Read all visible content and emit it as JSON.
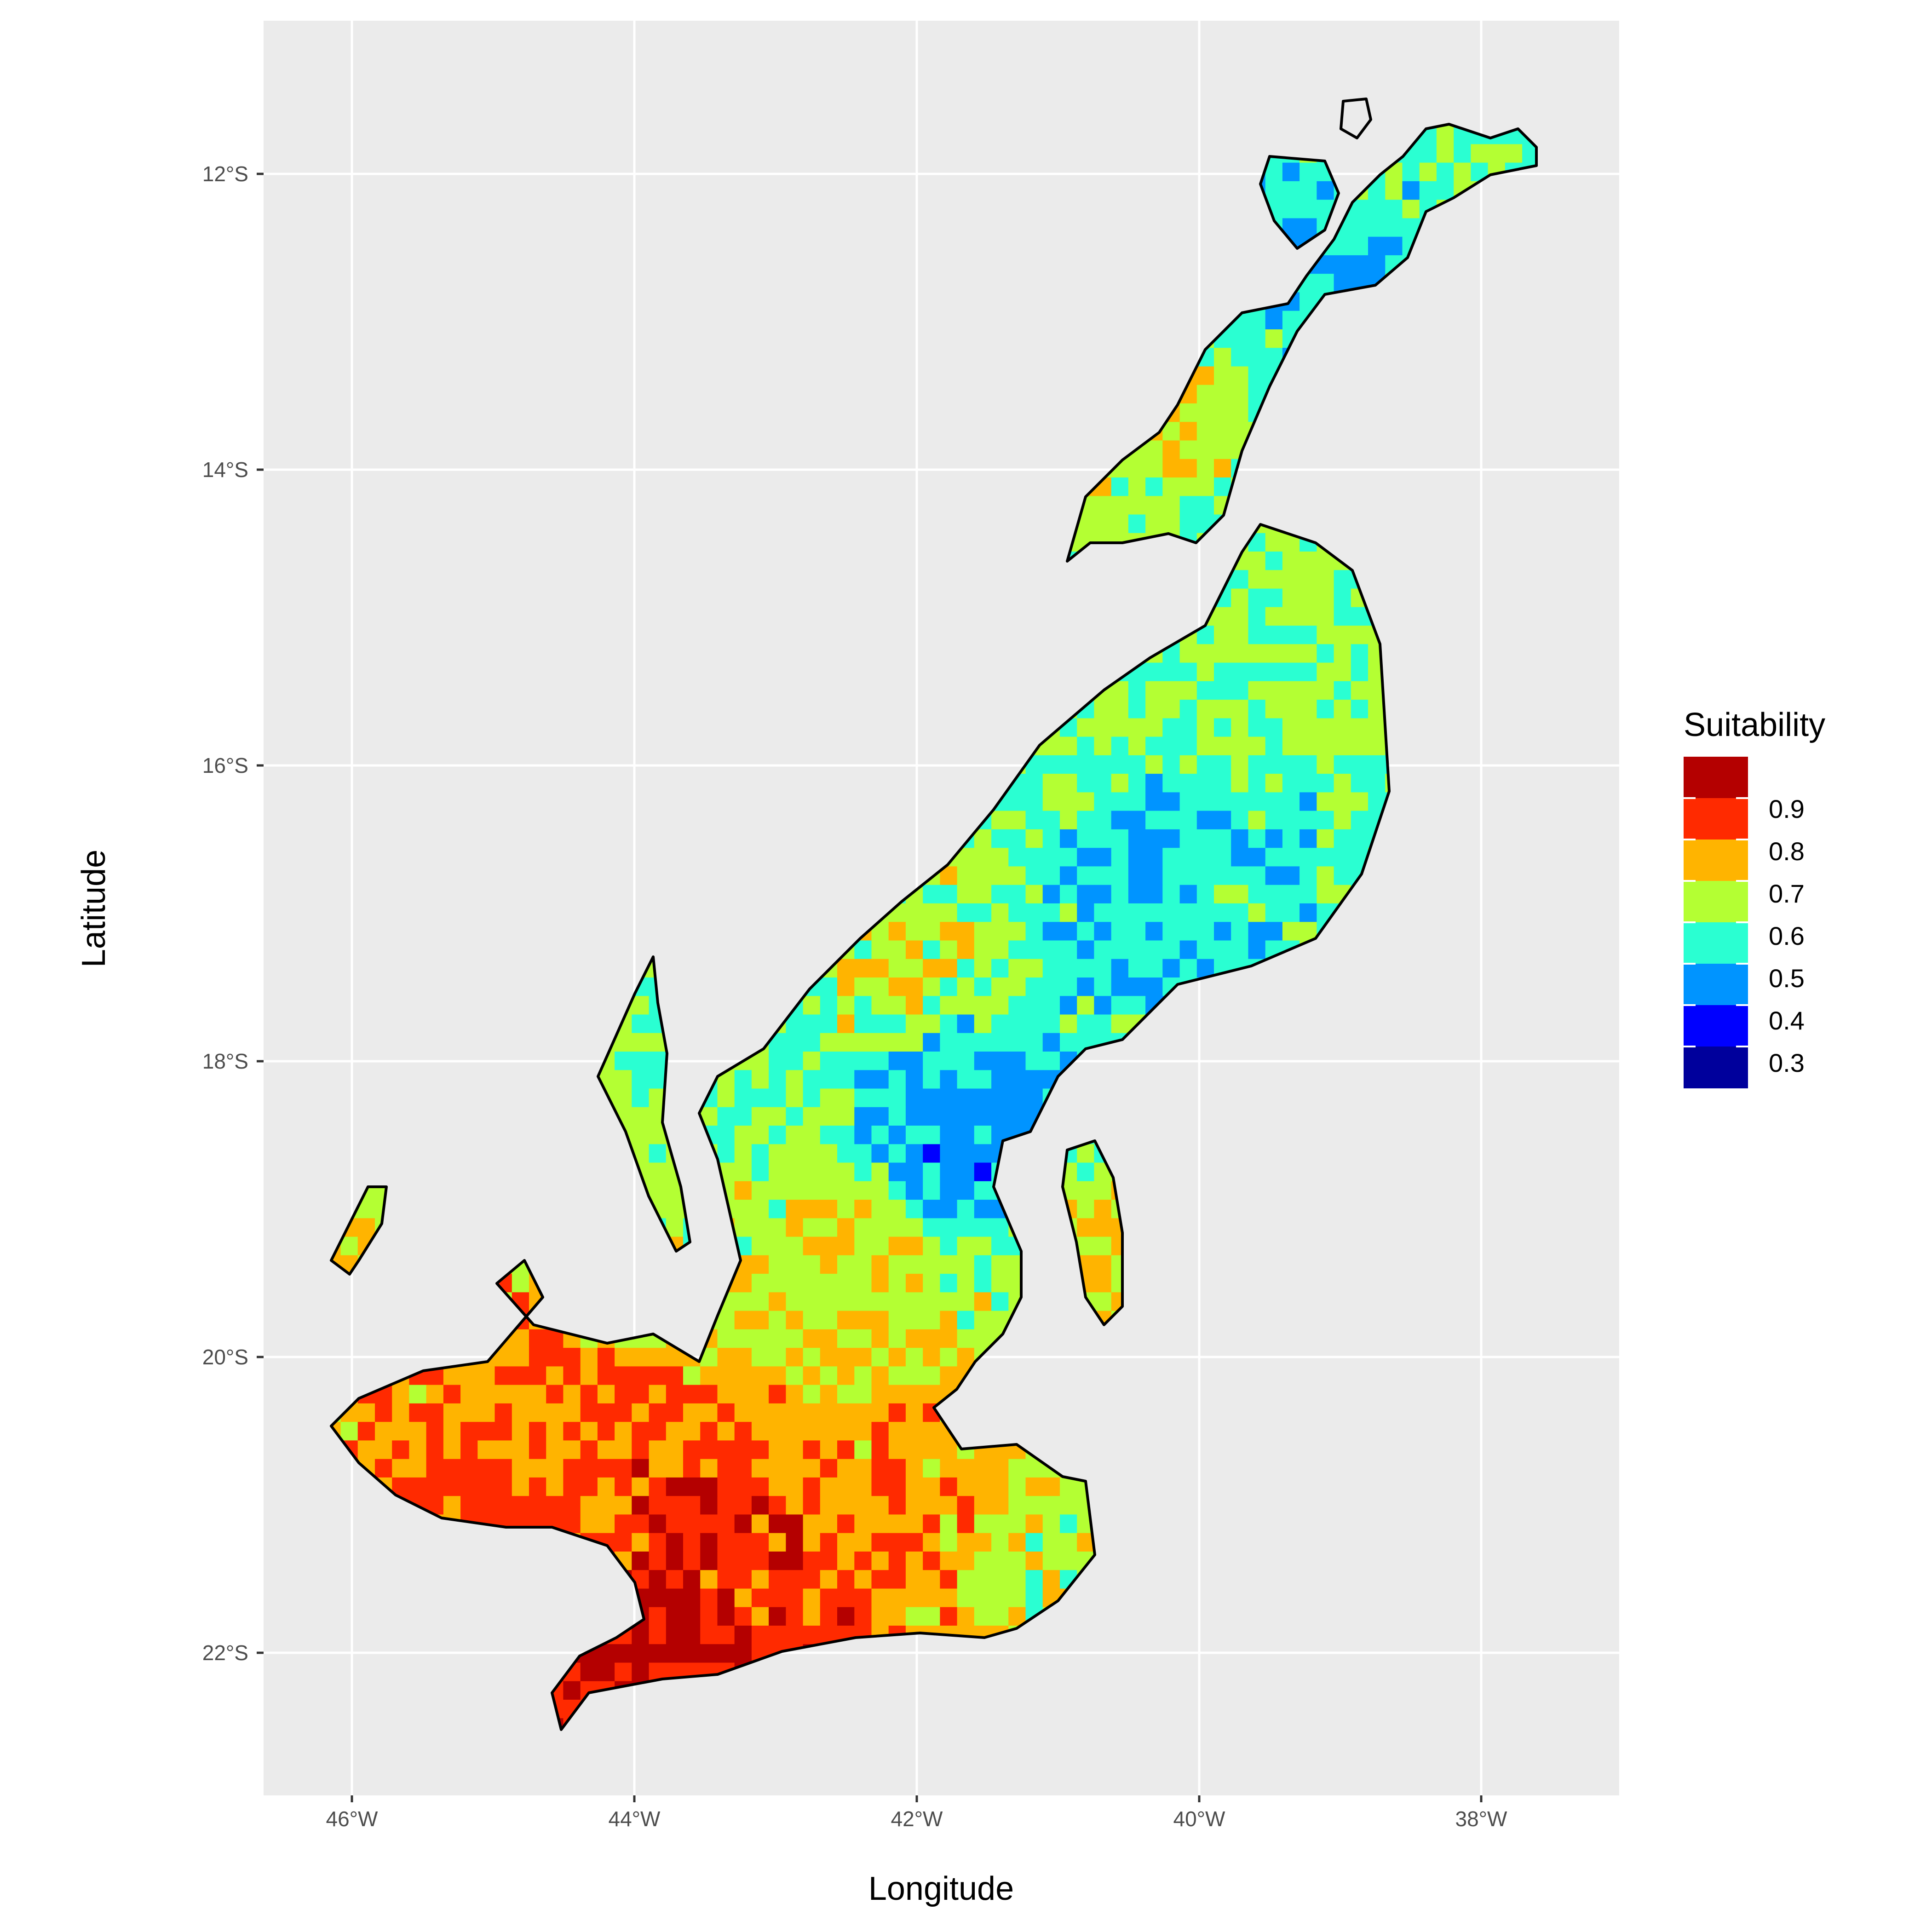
{
  "map": {
    "xlabel": "Longitude",
    "ylabel": "Latitude",
    "x_ticks": [
      "46°W",
      "44°W",
      "42°W",
      "40°W",
      "38°W"
    ],
    "y_ticks": [
      "12°S",
      "14°S",
      "16°S",
      "18°S",
      "20°S",
      "22°S"
    ],
    "panel_color": "#ebebeb",
    "grid_color": "#ffffff",
    "outline_color": "#000000"
  },
  "legend": {
    "title": "Suitability",
    "labels": [
      "0.9",
      "0.8",
      "0.7",
      "0.6",
      "0.5",
      "0.4",
      "0.3"
    ],
    "colors": [
      "#b40000",
      "#ff2a00",
      "#ffb400",
      "#b4ff33",
      "#2affd2",
      "#0094ff",
      "#0000ff",
      "#00009c"
    ]
  },
  "chart_data": {
    "type": "heatmap",
    "xlabel": "Longitude",
    "ylabel": "Latitude",
    "xlim": [
      -46.6,
      -37.1
    ],
    "ylim": [
      -22.8,
      -11.3
    ],
    "x_ticks": [
      -46,
      -44,
      -42,
      -40,
      -38
    ],
    "y_ticks": [
      -12,
      -14,
      -16,
      -18,
      -20,
      -22
    ],
    "grid": true,
    "legend_position": "right",
    "color_scale": {
      "name": "Suitability",
      "breaks": [
        0.9,
        0.8,
        0.7,
        0.6,
        0.5,
        0.4,
        0.3
      ],
      "colors": [
        "#b40000",
        "#ff2a00",
        "#ffb400",
        "#b4ff33",
        "#2affd2",
        "#0094ff",
        "#0000ff",
        "#00009c"
      ]
    },
    "regions": [
      {
        "lon": -43.2,
        "lat": -21.4,
        "value": 0.85
      },
      {
        "lon": -44.9,
        "lat": -20.9,
        "value": 0.82
      },
      {
        "lon": -43.5,
        "lat": -21.8,
        "value": 0.92
      },
      {
        "lon": -42.2,
        "lat": -20.8,
        "value": 0.76
      },
      {
        "lon": -41.0,
        "lat": -21.2,
        "value": 0.66
      },
      {
        "lon": -42.6,
        "lat": -19.2,
        "value": 0.68
      },
      {
        "lon": -41.9,
        "lat": -18.4,
        "value": 0.46
      },
      {
        "lon": -42.2,
        "lat": -17.3,
        "value": 0.66
      },
      {
        "lon": -41.3,
        "lat": -16.0,
        "value": 0.58
      },
      {
        "lon": -40.6,
        "lat": -16.9,
        "value": 0.52
      },
      {
        "lon": -40.5,
        "lat": -15.4,
        "value": 0.62
      },
      {
        "lon": -40.8,
        "lat": -13.2,
        "value": 0.72
      },
      {
        "lon": -39.6,
        "lat": -12.6,
        "value": 0.52
      },
      {
        "lon": -38.9,
        "lat": -11.9,
        "value": 0.58
      },
      {
        "lon": -46.0,
        "lat": -19.2,
        "value": 0.72
      },
      {
        "lon": -43.9,
        "lat": -18.2,
        "value": 0.62
      },
      {
        "lon": -40.7,
        "lat": -19.4,
        "value": 0.68
      }
    ]
  }
}
